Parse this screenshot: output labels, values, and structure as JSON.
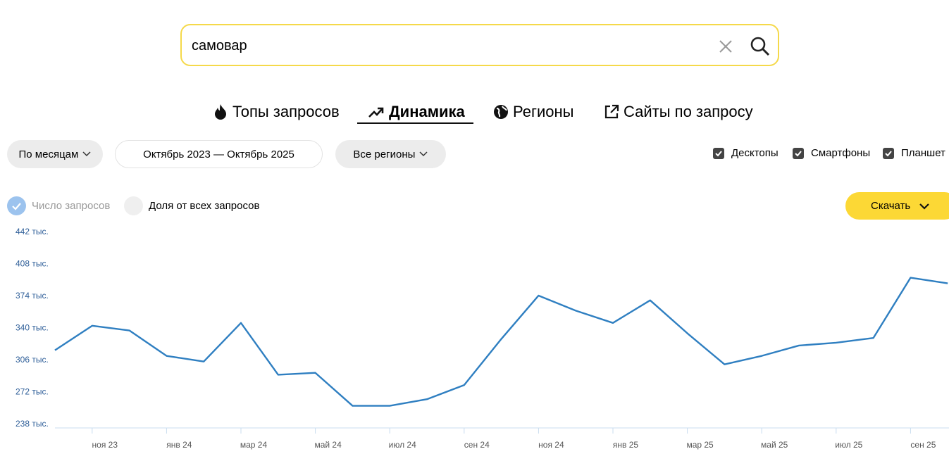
{
  "search": {
    "query": "самовар"
  },
  "tabs": [
    "Топы запросов",
    "Динамика",
    "Регионы",
    "Сайты по запросу"
  ],
  "filters": {
    "period": "По месяцам",
    "range": "Октябрь 2023 — Октябрь 2025",
    "regions": "Все регионы"
  },
  "devices": [
    "Десктопы",
    "Смартфоны",
    "Планшет"
  ],
  "modes": [
    "Число запросов",
    "Доля от всех запросов"
  ],
  "download": "Скачать",
  "chart_data": {
    "type": "line",
    "categories": [
      null,
      "ноя 23",
      null,
      "янв 24",
      null,
      "мар 24",
      null,
      "май 24",
      null,
      "июл 24",
      null,
      "сен 24",
      null,
      "ноя 24",
      null,
      "янв 25",
      null,
      "мар 25",
      null,
      "май 25",
      null,
      "июл 25",
      null,
      "сен 25",
      null
    ],
    "series": [
      {
        "name": "Число запросов",
        "color": "#2f7fc1",
        "values": [
          316000,
          342000,
          337000,
          310000,
          304000,
          345000,
          290000,
          292000,
          257000,
          257000,
          264000,
          279000,
          328000,
          374000,
          358000,
          345000,
          369000,
          334000,
          301000,
          310000,
          321000,
          324000,
          329000,
          393000,
          387000
        ]
      }
    ],
    "ylim": [
      238000,
      442000
    ],
    "yticks": [
      {
        "value": 238000,
        "label": "238 тыс."
      },
      {
        "value": 272000,
        "label": "272 тыс."
      },
      {
        "value": 306000,
        "label": "306 тыс."
      },
      {
        "value": 340000,
        "label": "340 тыс."
      },
      {
        "value": 374000,
        "label": "374 тыс."
      },
      {
        "value": 408000,
        "label": "408 тыс."
      },
      {
        "value": 442000,
        "label": "442 тыс."
      }
    ]
  }
}
